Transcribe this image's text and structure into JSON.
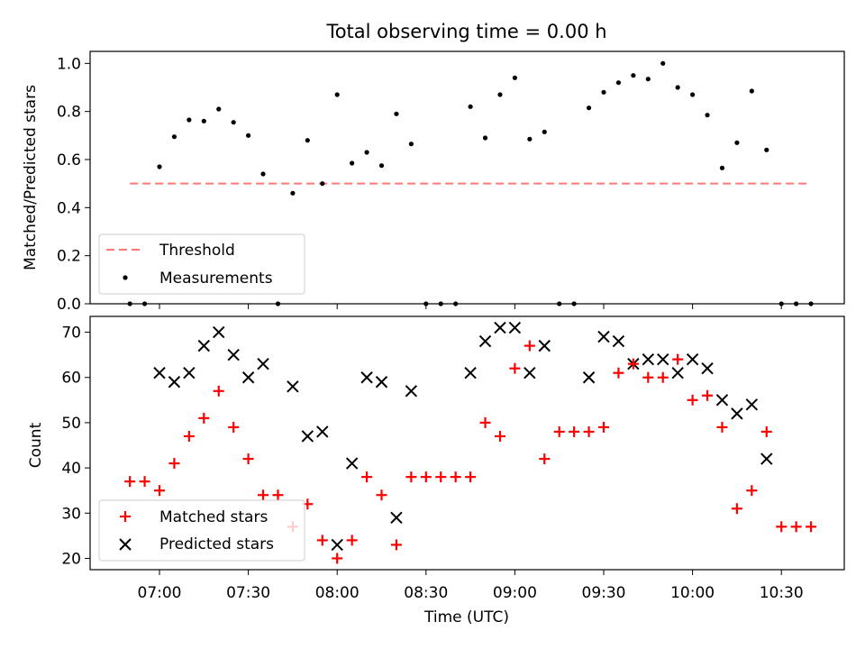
{
  "chart_data": [
    {
      "type": "scatter",
      "title": "Total observing time = 0.00 h",
      "ylabel": "Matched/Predicted stars",
      "xlabel": "",
      "ylim": [
        0,
        1.05
      ],
      "yticks": [
        "0.0",
        "0.2",
        "0.4",
        "0.6",
        "0.8",
        "1.0"
      ],
      "threshold": {
        "name": "Threshold",
        "value": 0.5,
        "x_start": "06:50",
        "x_end": "10:40",
        "color": "#ff7777"
      },
      "legend": {
        "location": "lower-left",
        "entries": [
          "Threshold",
          "Measurements"
        ]
      },
      "series": [
        {
          "name": "Measurements",
          "color": "#000000",
          "x": [
            "06:50",
            "06:55",
            "07:00",
            "07:05",
            "07:10",
            "07:15",
            "07:20",
            "07:25",
            "07:30",
            "07:35",
            "07:40",
            "07:45",
            "07:50",
            "07:55",
            "08:00",
            "08:05",
            "08:10",
            "08:15",
            "08:20",
            "08:25",
            "08:30",
            "08:35",
            "08:40",
            "08:45",
            "08:50",
            "08:55",
            "09:00",
            "09:05",
            "09:10",
            "09:15",
            "09:20",
            "09:25",
            "09:30",
            "09:35",
            "09:40",
            "09:45",
            "09:50",
            "09:55",
            "10:00",
            "10:05",
            "10:10",
            "10:15",
            "10:20",
            "10:25",
            "10:30",
            "10:35",
            "10:40"
          ],
          "values": [
            0.0,
            0.0,
            0.57,
            0.695,
            0.765,
            0.76,
            0.81,
            0.755,
            0.7,
            0.54,
            0.0,
            0.46,
            0.68,
            0.5,
            0.87,
            0.585,
            0.63,
            0.575,
            0.79,
            0.665,
            0.0,
            0.0,
            0.0,
            0.82,
            0.69,
            0.87,
            0.94,
            0.685,
            0.715,
            0.0,
            0.0,
            0.815,
            0.88,
            0.92,
            0.95,
            0.935,
            1.0,
            0.9,
            0.87,
            0.785,
            0.565,
            0.67,
            0.885,
            0.64,
            0.0,
            0.0,
            0.0
          ]
        }
      ]
    },
    {
      "type": "scatter",
      "title": "",
      "ylabel": "Count",
      "xlabel": "Time (UTC)",
      "ylim": [
        17.5,
        73.5
      ],
      "yticks": [
        "20",
        "30",
        "40",
        "50",
        "60",
        "70"
      ],
      "xticks": [
        "07:00",
        "07:30",
        "08:00",
        "08:30",
        "09:00",
        "09:30",
        "10:00",
        "10:30"
      ],
      "legend": {
        "location": "lower-left",
        "entries": [
          "Matched stars",
          "Predicted stars"
        ]
      },
      "series": [
        {
          "name": "Matched stars",
          "marker": "+",
          "color": "#ff0000",
          "x": [
            "06:50",
            "06:55",
            "07:00",
            "07:05",
            "07:10",
            "07:15",
            "07:20",
            "07:25",
            "07:30",
            "07:35",
            "07:40",
            "07:45",
            "07:50",
            "07:55",
            "08:00",
            "08:05",
            "08:10",
            "08:15",
            "08:20",
            "08:25",
            "08:30",
            "08:35",
            "08:40",
            "08:45",
            "08:50",
            "08:55",
            "09:00",
            "09:05",
            "09:10",
            "09:15",
            "09:20",
            "09:25",
            "09:30",
            "09:35",
            "09:40",
            "09:45",
            "09:50",
            "09:55",
            "10:00",
            "10:05",
            "10:10",
            "10:15",
            "10:20",
            "10:25",
            "10:30",
            "10:35",
            "10:40"
          ],
          "values": [
            37,
            37,
            35,
            41,
            47,
            51,
            57,
            49,
            42,
            34,
            34,
            27,
            32,
            24,
            20,
            24,
            38,
            34,
            23,
            38,
            38,
            38,
            38,
            38,
            50,
            47,
            62,
            67,
            42,
            48,
            48,
            48,
            49,
            61,
            63,
            60,
            60,
            64,
            55,
            56,
            49,
            31,
            35,
            48,
            27,
            27,
            27
          ]
        },
        {
          "name": "Predicted stars",
          "marker": "x",
          "color": "#000000",
          "x": [
            "07:00",
            "07:05",
            "07:10",
            "07:15",
            "07:20",
            "07:25",
            "07:30",
            "07:35",
            "07:45",
            "07:50",
            "07:55",
            "08:00",
            "08:05",
            "08:10",
            "08:15",
            "08:20",
            "08:25",
            "08:45",
            "08:50",
            "08:55",
            "09:00",
            "09:05",
            "09:10",
            "09:25",
            "09:30",
            "09:35",
            "09:40",
            "09:45",
            "09:50",
            "09:55",
            "10:00",
            "10:05",
            "10:10",
            "10:15",
            "10:20",
            "10:25"
          ],
          "values": [
            61,
            59,
            61,
            67,
            70,
            65,
            60,
            63,
            58,
            47,
            48,
            23,
            41,
            60,
            59,
            29,
            57,
            61,
            68,
            71,
            71,
            61,
            67,
            60,
            69,
            68,
            63,
            64,
            64,
            61,
            64,
            62,
            55,
            52,
            54,
            42
          ]
        }
      ]
    }
  ]
}
